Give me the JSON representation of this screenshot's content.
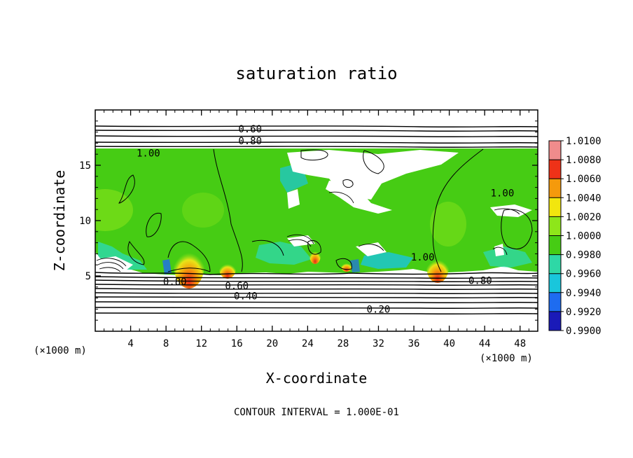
{
  "chart_data": {
    "type": "heatmap",
    "title": "saturation ratio",
    "xlabel": "X-coordinate",
    "ylabel": "Z-coordinate",
    "x_unit": "(×1000 m)",
    "y_unit": "(×1000 m)",
    "xlim": [
      0,
      50
    ],
    "ylim": [
      0,
      20
    ],
    "x_ticks": [
      4,
      8,
      12,
      16,
      20,
      24,
      28,
      32,
      36,
      40,
      44,
      48
    ],
    "y_ticks": [
      5,
      10,
      15
    ],
    "colorbar": {
      "levels": [
        "0.9900",
        "0.9920",
        "0.9940",
        "0.9960",
        "0.9980",
        "1.0000",
        "1.0020",
        "1.0040",
        "1.0060",
        "1.0080",
        "1.0100"
      ],
      "colors": [
        "#7a1fa2",
        "#1a1ab8",
        "#1e6cf0",
        "#19c6dc",
        "#2ed8a6",
        "#46cc14",
        "#8ee61a",
        "#f2e60e",
        "#f59a0c",
        "#ee3218",
        "#f08c8c"
      ]
    },
    "contour_labels": [
      {
        "text": "0.60",
        "x": 17.5,
        "z": 18.3
      },
      {
        "text": "0.80",
        "x": 17.5,
        "z": 17.2
      },
      {
        "text": "1.00",
        "x": 6.0,
        "z": 16.1
      },
      {
        "text": "1.00",
        "x": 46.0,
        "z": 12.5
      },
      {
        "text": "1.00",
        "x": 37.0,
        "z": 6.7
      },
      {
        "text": "0.80",
        "x": 9.0,
        "z": 4.5
      },
      {
        "text": "0.60",
        "x": 16.0,
        "z": 4.1
      },
      {
        "text": "0.40",
        "x": 17.0,
        "z": 3.2
      },
      {
        "text": "0.80",
        "x": 43.5,
        "z": 4.6
      },
      {
        "text": "0.20",
        "x": 32.0,
        "z": 2.0
      }
    ],
    "annotation": "CONTOUR INTERVAL = 1.000E-01"
  }
}
